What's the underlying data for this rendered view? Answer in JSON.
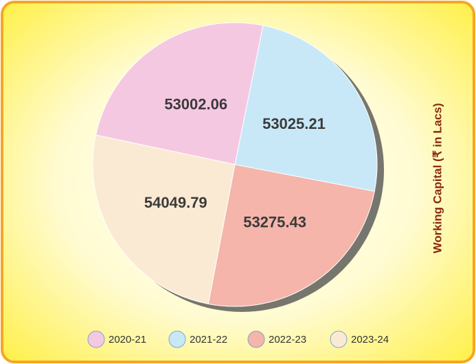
{
  "chart_data": {
    "type": "pie",
    "title": "Working Capital (₹ in Lacs)",
    "categories": [
      "2020-21",
      "2021-22",
      "2022-23",
      "2023-24"
    ],
    "values": [
      53002.06,
      53025.21,
      53275.43,
      54049.79
    ],
    "colors": [
      "#f5c8e2",
      "#c8e8f8",
      "#f5b5aa",
      "#fbead3"
    ]
  }
}
